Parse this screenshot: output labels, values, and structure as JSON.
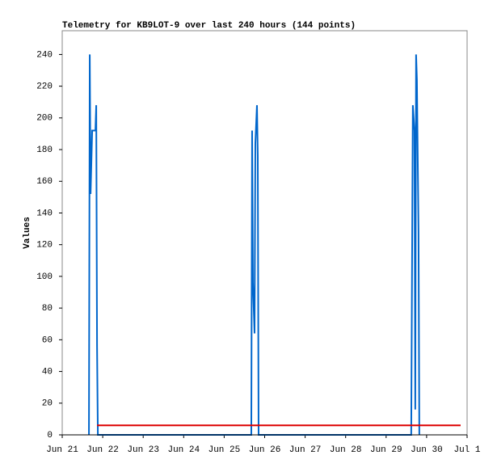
{
  "chart_data": {
    "type": "line",
    "title": "Telemetry for KB9LOT-9 over last 240 hours (144 points)",
    "y_label": "Values",
    "xlim": [
      0,
      10
    ],
    "xticks": [
      {
        "value": 0,
        "label": "Jun 21"
      },
      {
        "value": 1,
        "label": "Jun 22"
      },
      {
        "value": 2,
        "label": "Jun 23"
      },
      {
        "value": 3,
        "label": "Jun 24"
      },
      {
        "value": 4,
        "label": "Jun 25"
      },
      {
        "value": 5,
        "label": "Jun 26"
      },
      {
        "value": 6,
        "label": "Jun 27"
      },
      {
        "value": 7,
        "label": "Jun 28"
      },
      {
        "value": 8,
        "label": "Jun 29"
      },
      {
        "value": 9,
        "label": "Jun 30"
      },
      {
        "value": 10,
        "label": "Jul 1"
      }
    ],
    "ylim": [
      0,
      255
    ],
    "yticks": [
      0,
      20,
      40,
      60,
      80,
      100,
      120,
      140,
      160,
      180,
      200,
      220,
      240
    ],
    "series": [
      {
        "color": "#0066cc",
        "x": [
          0.66,
          0.68,
          0.7,
          0.74,
          0.82,
          0.84,
          0.86,
          0.88,
          4.67,
          4.69,
          4.71,
          4.75,
          4.77,
          4.81,
          4.83,
          4.85,
          8.62,
          8.64,
          8.66,
          8.7,
          8.72,
          8.74,
          8.76,
          8.78,
          8.8,
          8.82
        ],
        "values": [
          0,
          240,
          152,
          192,
          192,
          208,
          56,
          0,
          0,
          192,
          96,
          64,
          184,
          208,
          176,
          0,
          0,
          104,
          208,
          192,
          16,
          240,
          224,
          176,
          128,
          0
        ]
      },
      {
        "color": "#dd0000",
        "x": [
          0.86,
          9.84
        ],
        "values": [
          6,
          6
        ]
      }
    ]
  }
}
